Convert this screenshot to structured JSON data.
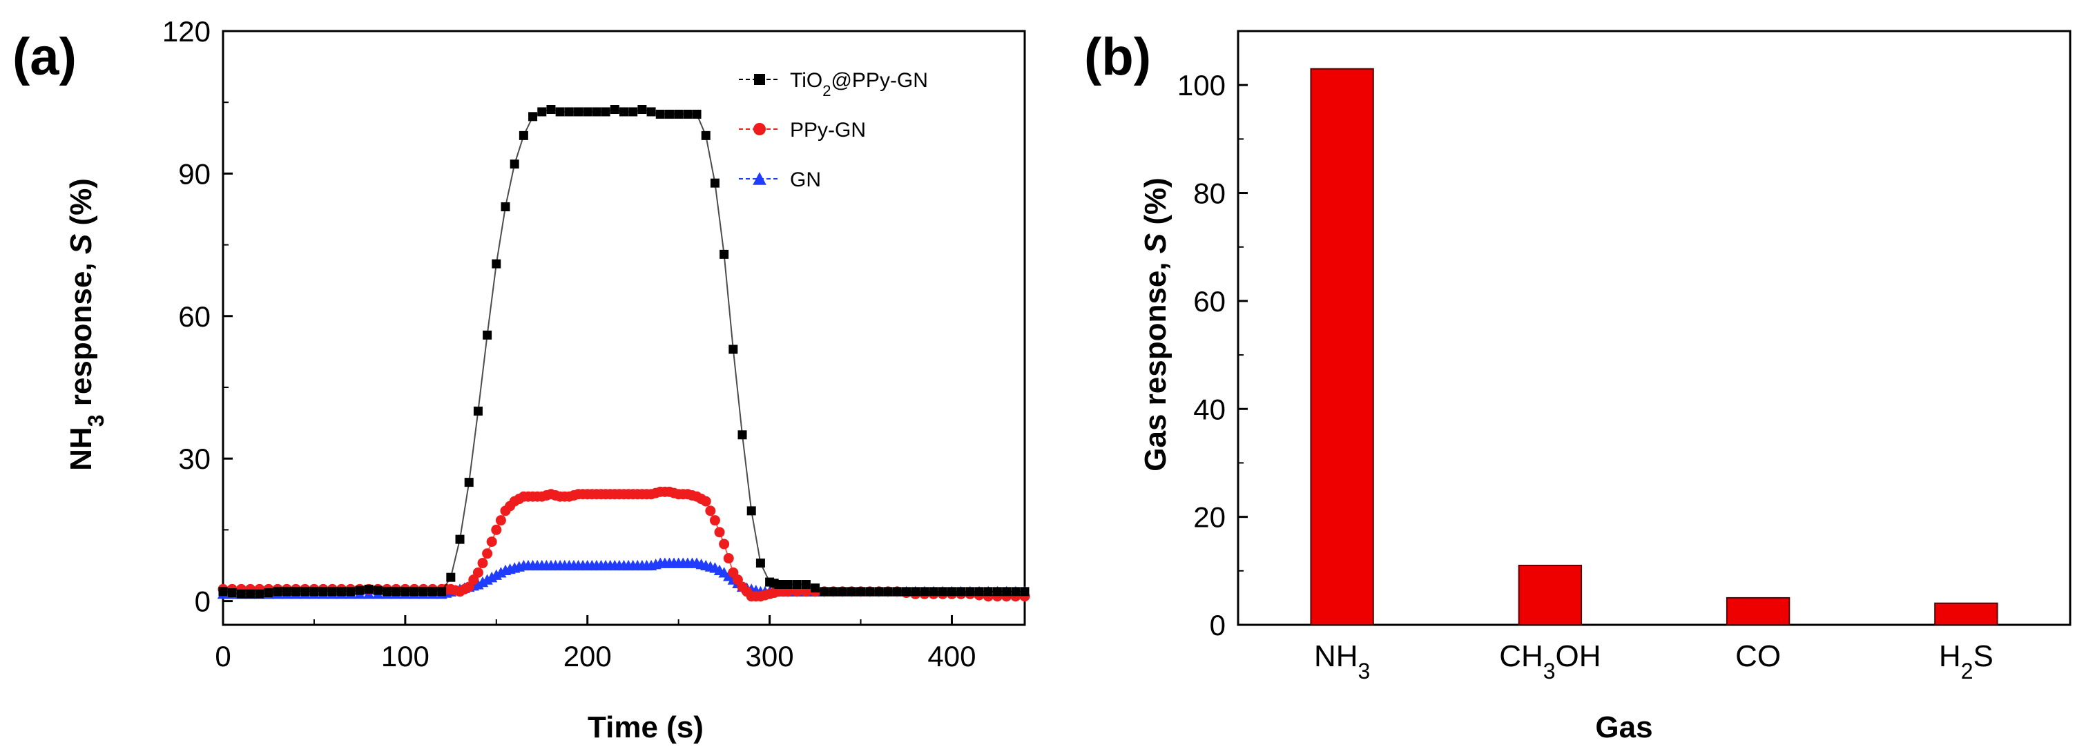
{
  "chart_data": [
    {
      "panel": "(a)",
      "type": "scatter",
      "title": "",
      "xlabel": "Time (s)",
      "ylabel": "NH3 response, S (%)",
      "ylabel_parts": {
        "pre": "NH",
        "sub": "3",
        "mid": " response, ",
        "ital": "S",
        "post": " (%)"
      },
      "xlim": [
        0,
        440
      ],
      "ylim": [
        -5,
        120
      ],
      "xticks": [
        0,
        100,
        200,
        300,
        400
      ],
      "yticks": [
        0,
        30,
        60,
        90,
        120
      ],
      "legend_position": "top-right",
      "series": [
        {
          "name": "TiO2@PPy-GN",
          "name_parts": {
            "pre": "TiO",
            "sub": "2",
            "post": "@PPy-GN"
          },
          "color": "#000000",
          "marker": "square",
          "x": [
            0,
            10,
            20,
            30,
            40,
            50,
            60,
            70,
            80,
            90,
            100,
            110,
            120,
            125,
            130,
            135,
            140,
            145,
            150,
            155,
            160,
            165,
            170,
            175,
            180,
            185,
            190,
            195,
            200,
            205,
            210,
            215,
            220,
            225,
            230,
            235,
            240,
            245,
            250,
            255,
            260,
            265,
            270,
            275,
            280,
            285,
            290,
            295,
            300,
            305,
            310,
            320,
            330,
            340,
            350,
            360,
            370,
            380,
            390,
            400,
            410,
            420,
            430,
            440
          ],
          "y": [
            2,
            1.5,
            1.5,
            2,
            2,
            2,
            2,
            2,
            2.5,
            2,
            2,
            2,
            2,
            5,
            13,
            25,
            40,
            56,
            71,
            83,
            92,
            98,
            102,
            103,
            103.5,
            103,
            103,
            103,
            103,
            103,
            103,
            103.5,
            103,
            103,
            103.5,
            103,
            102.5,
            102.5,
            102.5,
            102.5,
            102.5,
            98,
            88,
            73,
            53,
            35,
            19,
            8,
            4,
            3.5,
            3.5,
            3.5,
            2,
            2,
            2,
            2,
            2,
            2,
            2,
            2,
            2,
            2,
            2,
            2
          ]
        },
        {
          "name": "PPy-GN",
          "name_parts": {
            "pre": "PPy-GN",
            "sub": "",
            "post": ""
          },
          "color": "#ee1c1c",
          "marker": "circle",
          "x": [
            0,
            10,
            20,
            30,
            40,
            50,
            60,
            70,
            80,
            90,
            100,
            110,
            120,
            125,
            130,
            135,
            140,
            145,
            150,
            155,
            160,
            165,
            170,
            175,
            180,
            185,
            190,
            195,
            200,
            205,
            210,
            215,
            220,
            225,
            230,
            235,
            240,
            245,
            250,
            255,
            260,
            265,
            270,
            275,
            280,
            285,
            290,
            295,
            300,
            305,
            310,
            320,
            330,
            340,
            350,
            360,
            370,
            380,
            390,
            400,
            410,
            420,
            430,
            440
          ],
          "y": [
            2.5,
            2.5,
            2.5,
            2.5,
            2.5,
            2.5,
            2.5,
            2.5,
            2.5,
            2.5,
            2.5,
            2.5,
            2.5,
            2.5,
            2,
            3,
            6,
            10,
            15,
            19,
            21,
            22,
            22,
            22,
            22.5,
            22,
            22,
            22.5,
            22.5,
            22.5,
            22.5,
            22.5,
            22.5,
            22.5,
            22.5,
            22.5,
            23,
            23,
            22.5,
            22.5,
            22,
            21,
            17,
            12,
            6,
            3,
            1,
            1,
            1.5,
            2,
            2,
            2,
            2,
            2,
            2,
            2,
            2,
            1.5,
            1.5,
            1.5,
            1.5,
            1,
            1,
            1
          ]
        },
        {
          "name": "GN",
          "name_parts": {
            "pre": "GN",
            "sub": "",
            "post": ""
          },
          "color": "#1f3cff",
          "marker": "triangle",
          "x": [
            0,
            10,
            20,
            30,
            40,
            50,
            60,
            70,
            80,
            90,
            100,
            110,
            120,
            125,
            130,
            135,
            140,
            145,
            150,
            155,
            160,
            165,
            170,
            175,
            180,
            185,
            190,
            195,
            200,
            205,
            210,
            215,
            220,
            225,
            230,
            235,
            240,
            245,
            250,
            255,
            260,
            265,
            270,
            275,
            280,
            285,
            290,
            295,
            300,
            305,
            310,
            320,
            330,
            340,
            350,
            360,
            370,
            380,
            390,
            400,
            410,
            420,
            430,
            440
          ],
          "y": [
            1.5,
            1.5,
            1.5,
            1.5,
            1.5,
            1.5,
            1.5,
            1.5,
            1.5,
            1.5,
            1.5,
            1.5,
            1.5,
            2,
            2.5,
            3,
            3.5,
            4.5,
            5.5,
            6.5,
            7,
            7.5,
            7.5,
            7.5,
            7.5,
            7.5,
            7.5,
            7.5,
            7.5,
            7.5,
            7.5,
            7.5,
            7.5,
            7.5,
            7.5,
            7.5,
            8,
            8,
            8,
            8,
            8,
            7.5,
            7,
            6,
            4.5,
            3,
            2.5,
            2,
            2,
            2,
            2,
            2,
            2,
            2,
            2,
            2,
            2,
            2,
            2,
            2,
            2,
            2,
            2,
            2
          ]
        }
      ]
    },
    {
      "panel": "(b)",
      "type": "bar",
      "title": "",
      "xlabel": "Gas",
      "ylabel": "Gas response, S (%)",
      "ylabel_parts": {
        "pre": "Gas response, ",
        "sub": "",
        "mid": "",
        "ital": "S",
        "post": " (%)"
      },
      "categories": [
        "NH3",
        "CH3OH",
        "CO",
        "H2S"
      ],
      "category_parts": [
        {
          "pre": "NH",
          "sub": "3",
          "post": ""
        },
        {
          "pre": "CH",
          "sub": "3",
          "post": "OH"
        },
        {
          "pre": "CO",
          "sub": "",
          "post": ""
        },
        {
          "pre": "H",
          "sub": "2",
          "post": "S"
        }
      ],
      "values": [
        103,
        11,
        5,
        4
      ],
      "bar_color": "#ee0000",
      "ylim": [
        0,
        110
      ],
      "yticks": [
        0,
        20,
        40,
        60,
        80,
        100
      ]
    }
  ]
}
